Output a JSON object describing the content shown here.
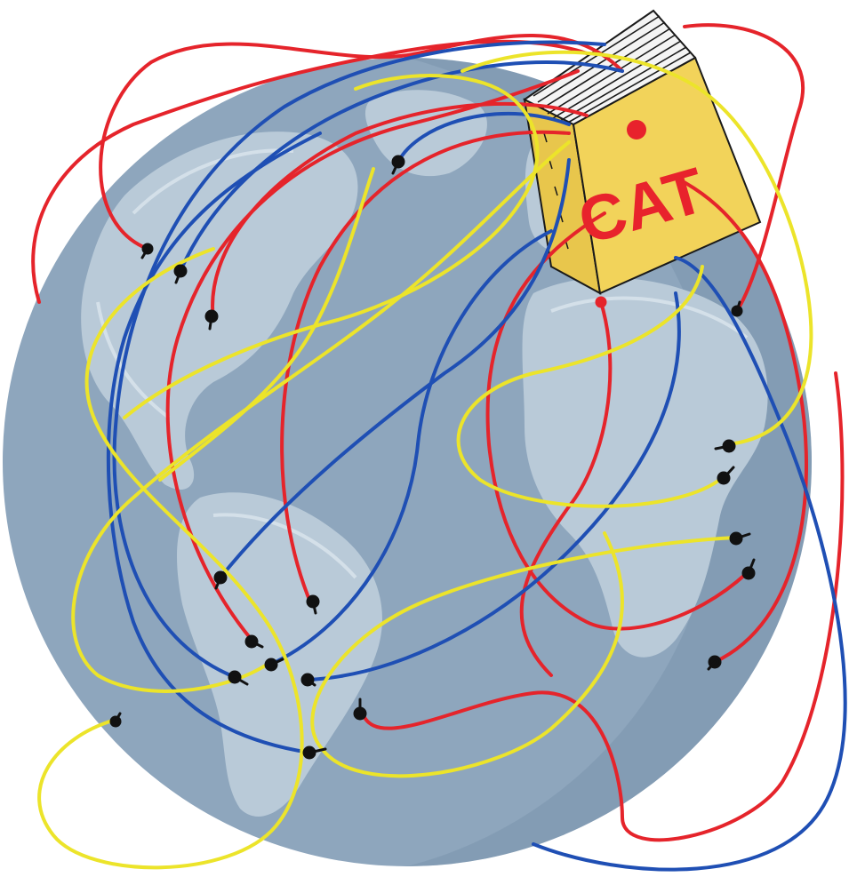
{
  "illustration": {
    "box_label": "CAT",
    "colors": {
      "background": "#ffffff",
      "globe_ocean": "#8ea6bd",
      "globe_shadow": "#6f8aa3",
      "globe_land": "#b9cad8",
      "box": "#f2d35a",
      "box_ink": "#1a1a1a",
      "wire_red": "#e5242b",
      "wire_blue": "#1f4fb4",
      "wire_yellow": "#ece42a",
      "plug": "#111111"
    },
    "icons": [
      "globe-icon",
      "box-icon"
    ]
  }
}
